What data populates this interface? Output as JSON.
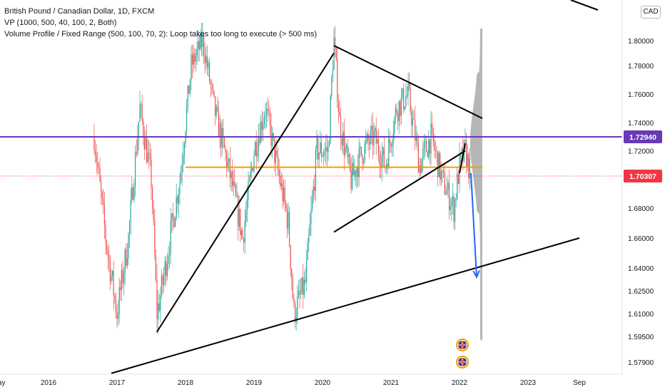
{
  "legend": {
    "title": "British Pound / Canadian Dollar, 1D, FXCM",
    "vp_line": "VP (1000, 500, 40, 100, 2, Both)",
    "vpfr_line": "Volume Profile / Fixed Range (500, 100, 70, 2): Loop takes too long to execute (> 500 ms)"
  },
  "currency_badge": "CAD",
  "colors": {
    "up": "#26a69a",
    "down": "#ef5350",
    "purple": "#673ab7",
    "orange": "#ff9800",
    "blue": "#2962ff",
    "last_price": "#f23645",
    "trendline": "#000000",
    "profile": "#9e9e9e"
  },
  "chart_data": {
    "type": "candlestick",
    "symbol": "GBPCAD",
    "timeframe": "1D",
    "y_axis_ticks": [
      "1.80000",
      "1.78000",
      "1.76000",
      "1.74000",
      "1.72000",
      "1.68000",
      "1.66000",
      "1.64000",
      "1.62500",
      "1.61000",
      "1.59500",
      "1.57900"
    ],
    "x_axis_ticks": [
      "May",
      "2016",
      "2017",
      "2018",
      "2019",
      "2020",
      "2021",
      "2022",
      "2023",
      "Sep"
    ],
    "price_labels": [
      {
        "name": "horizontal-level",
        "value": "1.72940",
        "color": "#673ab7"
      },
      {
        "name": "last-price",
        "value": "1.70307",
        "color": "#f23645"
      }
    ],
    "approx_price_path": [
      {
        "t": "2016-09",
        "p": 1.73
      },
      {
        "t": "2016-11",
        "p": 1.66
      },
      {
        "t": "2017-01",
        "p": 1.61
      },
      {
        "t": "2017-03",
        "p": 1.66
      },
      {
        "t": "2017-05",
        "p": 1.75
      },
      {
        "t": "2017-07",
        "p": 1.7
      },
      {
        "t": "2017-08",
        "p": 1.61
      },
      {
        "t": "2017-09",
        "p": 1.63
      },
      {
        "t": "2017-12",
        "p": 1.7
      },
      {
        "t": "2018-02",
        "p": 1.78
      },
      {
        "t": "2018-04",
        "p": 1.8
      },
      {
        "t": "2018-06",
        "p": 1.75
      },
      {
        "t": "2018-09",
        "p": 1.7
      },
      {
        "t": "2018-11",
        "p": 1.66
      },
      {
        "t": "2019-01",
        "p": 1.72
      },
      {
        "t": "2019-03",
        "p": 1.75
      },
      {
        "t": "2019-05",
        "p": 1.71
      },
      {
        "t": "2019-07",
        "p": 1.67
      },
      {
        "t": "2019-08",
        "p": 1.61
      },
      {
        "t": "2019-10",
        "p": 1.63
      },
      {
        "t": "2019-12",
        "p": 1.72
      },
      {
        "t": "2020-02",
        "p": 1.72
      },
      {
        "t": "2020-03",
        "p": 1.8
      },
      {
        "t": "2020-04",
        "p": 1.74
      },
      {
        "t": "2020-06",
        "p": 1.7
      },
      {
        "t": "2020-08",
        "p": 1.72
      },
      {
        "t": "2020-10",
        "p": 1.73
      },
      {
        "t": "2020-12",
        "p": 1.71
      },
      {
        "t": "2021-02",
        "p": 1.75
      },
      {
        "t": "2021-04",
        "p": 1.76
      },
      {
        "t": "2021-06",
        "p": 1.71
      },
      {
        "t": "2021-08",
        "p": 1.73
      },
      {
        "t": "2021-10",
        "p": 1.7
      },
      {
        "t": "2021-12",
        "p": 1.68
      },
      {
        "t": "2022-01",
        "p": 1.71
      },
      {
        "t": "2022-02",
        "p": 1.72
      },
      {
        "t": "2022-03",
        "p": 1.703
      }
    ],
    "drawings": [
      {
        "name": "support-trendline",
        "from": {
          "t": "2016-12",
          "p": 1.572
        },
        "to": {
          "t": "2023-10",
          "p": 1.66
        },
        "color": "#000000"
      },
      {
        "name": "rising-trendline",
        "from": {
          "t": "2017-08",
          "p": 1.598
        },
        "to": {
          "t": "2020-03",
          "p": 1.79
        },
        "color": "#000000"
      },
      {
        "name": "falling-resistance",
        "from": {
          "t": "2020-03",
          "p": 1.796
        },
        "to": {
          "t": "2022-05",
          "p": 1.743
        },
        "color": "#000000"
      },
      {
        "name": "triangle-lower-line",
        "from": {
          "t": "2020-03",
          "p": 1.664
        },
        "to": {
          "t": "2022-02",
          "p": 1.72
        },
        "color": "#000000"
      },
      {
        "name": "triangle-apex-line",
        "from": {
          "t": "2022-01",
          "p": 1.705
        },
        "to": {
          "t": "2022-02",
          "p": 1.725
        },
        "color": "#000000"
      },
      {
        "name": "projection-arrow",
        "from": {
          "t": "2022-03",
          "p": 1.705
        },
        "to": {
          "t": "2022-04",
          "p": 1.634
        },
        "color": "#2962ff"
      },
      {
        "name": "purple-level",
        "price": 1.7294,
        "color": "#673ab7"
      },
      {
        "name": "orange-level",
        "from": {
          "t": "2018-01"
        },
        "to": {
          "t": "2022-05"
        },
        "price": 1.709,
        "color": "#ff9800"
      }
    ],
    "event_icons": [
      {
        "name": "uk-flag-icon",
        "t": "2022-01"
      },
      {
        "name": "uk-flag-icon",
        "t": "2022-01"
      }
    ]
  }
}
